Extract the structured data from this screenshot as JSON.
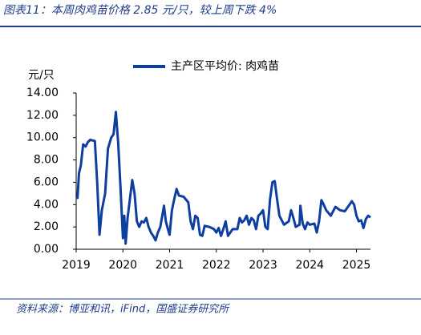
{
  "chart_data": {
    "type": "line",
    "title": "图表11：本周肉鸡苗价格 2.85 元/只，较上周下跌 4%",
    "y_label": "元/只",
    "source": "资料来源：博亚和讯，iFind，国盛证券研究所",
    "xlim": [
      2019,
      2025.3
    ],
    "xticks": [
      2019,
      2020,
      2021,
      2022,
      2023,
      2024,
      2025
    ],
    "ylim": [
      0,
      14
    ],
    "yticks": [
      {
        "value": 0,
        "label": "0.00"
      },
      {
        "value": 2,
        "label": "2.00"
      },
      {
        "value": 4,
        "label": "4.00"
      },
      {
        "value": 6,
        "label": "6.00"
      },
      {
        "value": 8,
        "label": "8.00"
      },
      {
        "value": 10,
        "label": "10.00"
      },
      {
        "value": 12,
        "label": "12.00"
      },
      {
        "value": 14,
        "label": "14.00"
      }
    ],
    "legend": "top",
    "x": [
      2019.0,
      2019.03,
      2019.06,
      2019.1,
      2019.15,
      2019.2,
      2019.25,
      2019.3,
      2019.4,
      2019.45,
      2019.5,
      2019.55,
      2019.62,
      2019.68,
      2019.75,
      2019.8,
      2019.85,
      2019.9,
      2019.95,
      2020.0,
      2020.03,
      2020.06,
      2020.1,
      2020.15,
      2020.2,
      2020.25,
      2020.3,
      2020.35,
      2020.4,
      2020.45,
      2020.5,
      2020.55,
      2020.6,
      2020.65,
      2020.7,
      2020.75,
      2020.8,
      2020.88,
      2020.92,
      2020.97,
      2021.0,
      2021.05,
      2021.1,
      2021.15,
      2021.2,
      2021.3,
      2021.4,
      2021.45,
      2021.5,
      2021.55,
      2021.6,
      2021.65,
      2021.7,
      2021.75,
      2021.85,
      2021.95,
      2022.0,
      2022.05,
      2022.1,
      2022.15,
      2022.2,
      2022.25,
      2022.3,
      2022.35,
      2022.45,
      2022.5,
      2022.55,
      2022.6,
      2022.65,
      2022.7,
      2022.75,
      2022.8,
      2022.85,
      2022.9,
      2022.95,
      2023.0,
      2023.05,
      2023.1,
      2023.15,
      2023.2,
      2023.25,
      2023.3,
      2023.35,
      2023.45,
      2023.55,
      2023.6,
      2023.65,
      2023.7,
      2023.78,
      2023.8,
      2023.85,
      2023.9,
      2023.95,
      2024.0,
      2024.1,
      2024.15,
      2024.2,
      2024.25,
      2024.3,
      2024.35,
      2024.45,
      2024.55,
      2024.65,
      2024.75,
      2024.85,
      2024.9,
      2024.95,
      2025.0,
      2025.05,
      2025.1,
      2025.15,
      2025.2,
      2025.25,
      2025.3
    ],
    "series": [
      {
        "name": "主产区平均价: 肉鸡苗",
        "color": "#0d3ea0",
        "values": [
          4.8,
          4.6,
          6.8,
          7.5,
          9.4,
          9.2,
          9.6,
          9.8,
          9.7,
          6.0,
          1.3,
          3.5,
          5.0,
          9.0,
          10.0,
          10.3,
          12.3,
          9.5,
          5.5,
          1.0,
          3.0,
          0.5,
          2.8,
          4.5,
          6.2,
          5.0,
          2.5,
          2.0,
          2.5,
          2.4,
          2.8,
          2.0,
          1.5,
          1.2,
          0.8,
          1.5,
          2.0,
          3.9,
          2.5,
          1.7,
          1.3,
          3.5,
          4.5,
          5.4,
          4.8,
          4.7,
          4.2,
          2.5,
          1.8,
          3.0,
          2.8,
          1.3,
          1.2,
          2.1,
          2.0,
          1.8,
          1.5,
          1.9,
          1.2,
          1.8,
          2.5,
          1.2,
          1.5,
          1.8,
          1.8,
          2.8,
          2.4,
          2.6,
          3.0,
          2.2,
          2.8,
          2.6,
          1.8,
          3.0,
          3.2,
          3.5,
          2.0,
          1.8,
          4.5,
          6.0,
          6.1,
          4.5,
          3.0,
          2.2,
          2.5,
          3.5,
          2.8,
          2.0,
          2.2,
          3.9,
          2.3,
          1.8,
          2.4,
          2.2,
          2.3,
          1.5,
          2.5,
          4.4,
          4.0,
          3.5,
          3.0,
          3.8,
          3.5,
          3.4,
          4.0,
          4.3,
          4.0,
          3.0,
          2.5,
          2.6,
          1.9,
          2.7,
          3.0,
          2.85
        ]
      }
    ]
  }
}
